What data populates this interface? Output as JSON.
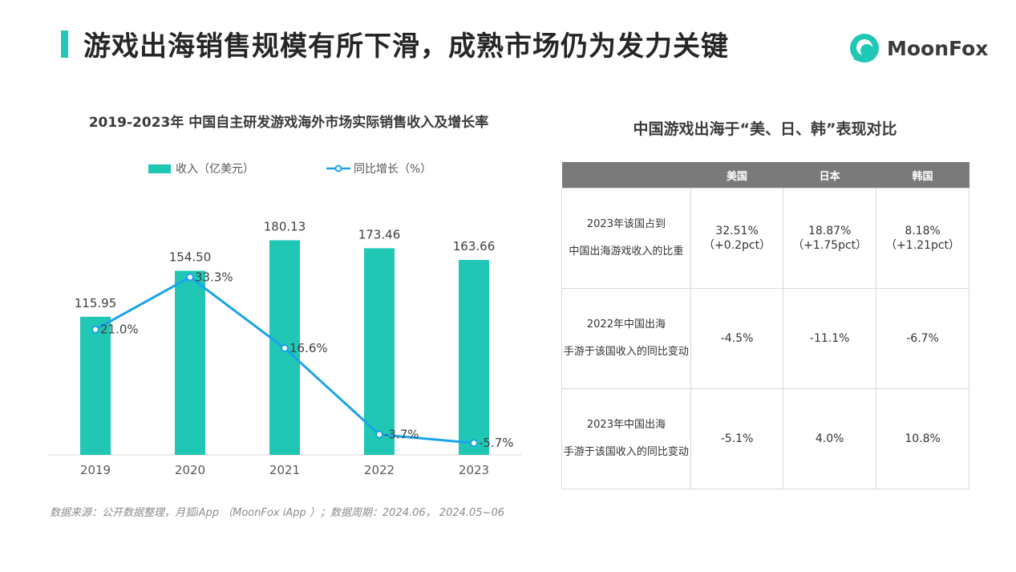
{
  "header": {
    "title": "游戏出海销售规模有所下滑，成熟市场仍为发力关键",
    "logo_text": "MoonFox"
  },
  "chart_data": {
    "type": "bar",
    "title": "2019-2023年 中国自主研发游戏海外市场实际销售收入及增长率",
    "categories": [
      "2019",
      "2020",
      "2021",
      "2022",
      "2023"
    ],
    "series": [
      {
        "name": "收入（亿美元）",
        "type": "bar",
        "values": [
          115.95,
          154.5,
          180.13,
          173.46,
          163.66
        ],
        "labels": [
          "115.95",
          "154.50",
          "180.13",
          "173.46",
          "163.66"
        ],
        "color": "#1fc7b4"
      },
      {
        "name": "同比增长（%）",
        "type": "line",
        "values": [
          21.0,
          33.3,
          16.6,
          -3.7,
          -5.7
        ],
        "labels": [
          "21.0%",
          "33.3%",
          "16.6%",
          "-3.7%",
          "-5.7%"
        ],
        "color": "#1aa3e8"
      }
    ],
    "ylim": [
      0,
      200
    ],
    "y2lim": [
      -10,
      40
    ],
    "xlabel": "",
    "ylabel": "",
    "legend": "top"
  },
  "source_note": "数据来源：公开数据整理，月狐iApp （MoonFox iApp ）；数据周期：2024.06， 2024.05~06",
  "table": {
    "title": "中国游戏出海于“美、日、韩”表现对比",
    "headers": [
      "",
      "美国",
      "日本",
      "韩国"
    ],
    "rows": [
      {
        "label": "2023年该国占到中国出海游戏收入的比重",
        "values": [
          "32.51%\n（+0.2pct）",
          "18.87%\n（+1.75pct）",
          "8.18%\n（+1.21pct）"
        ]
      },
      {
        "label": "2022年中国出海手游于该国收入的同比变动",
        "values": [
          "-4.5%",
          "-11.1%",
          "-6.7%"
        ]
      },
      {
        "label": "2023年中国出海手游于该国收入的同比变动",
        "values": [
          "-5.1%",
          "4.0%",
          "10.8%"
        ]
      }
    ]
  },
  "colors": {
    "accent": "#1fc7b4",
    "line": "#1aa3e8",
    "header_gray": "#7a7a7a"
  }
}
